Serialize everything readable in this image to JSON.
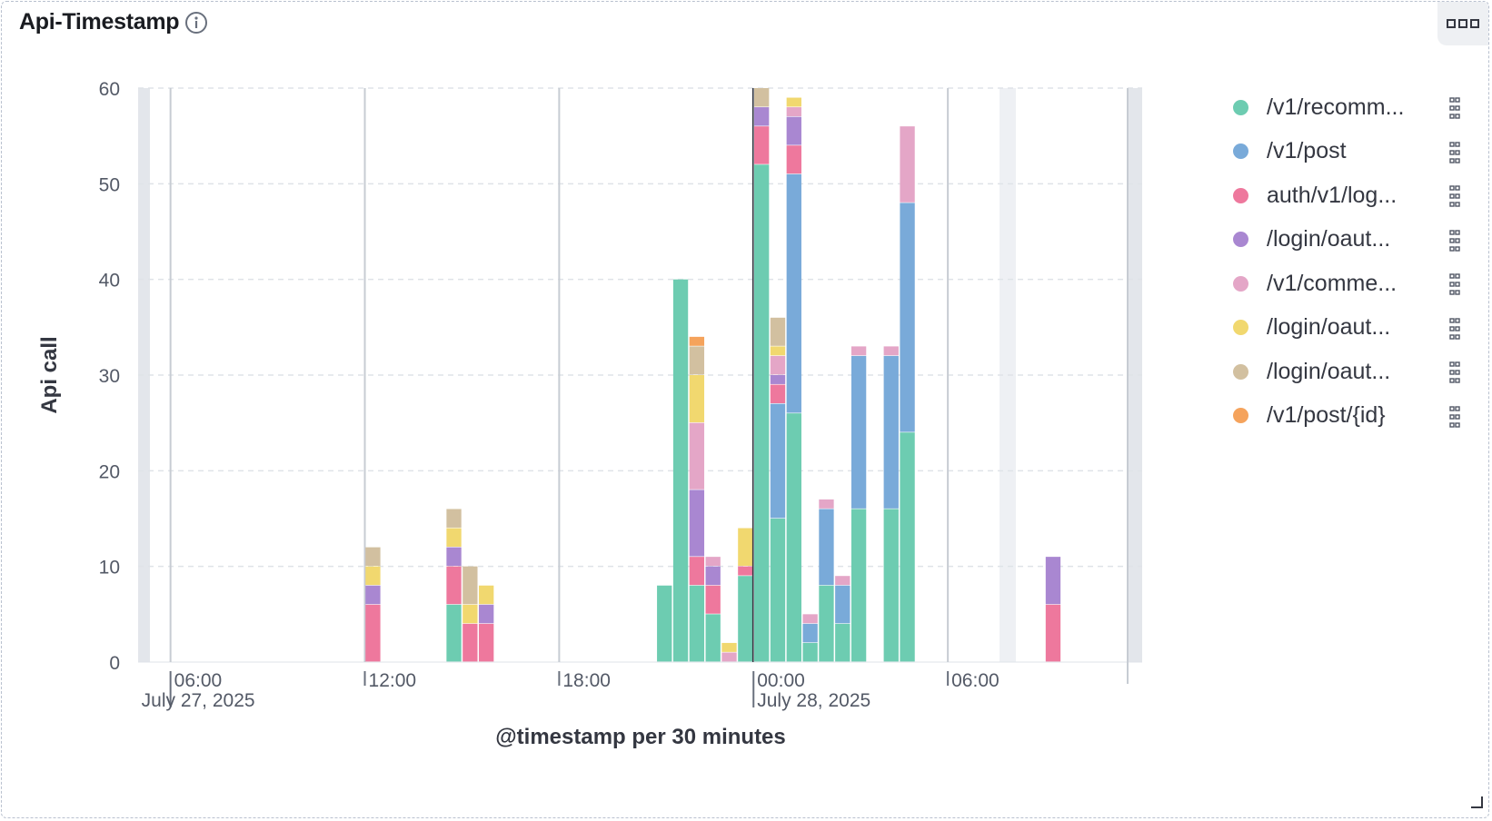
{
  "panel": {
    "title": "Api-Timestamp",
    "info_icon": "info-icon",
    "menu_icon": "ellipsis-icon",
    "resize_icon": "resize-corner-icon"
  },
  "chart_data": {
    "type": "bar",
    "stacked": true,
    "xlabel": "@timestamp per 30 minutes",
    "ylabel": "Api call",
    "ylim": [
      0,
      60
    ],
    "yticks": [
      0,
      10,
      20,
      30,
      40,
      50,
      60
    ],
    "xlim": [
      "2025-07-27 05:00",
      "2025-07-28 12:00"
    ],
    "xticks": [
      {
        "t": "2025-07-27 06:00",
        "label": "06:00",
        "sublabel": "July 27, 2025"
      },
      {
        "t": "2025-07-27 12:00",
        "label": "12:00",
        "sublabel": ""
      },
      {
        "t": "2025-07-27 18:00",
        "label": "18:00",
        "sublabel": ""
      },
      {
        "t": "2025-07-28 00:00",
        "label": "00:00",
        "sublabel": "July 28, 2025"
      },
      {
        "t": "2025-07-28 06:00",
        "label": "06:00",
        "sublabel": ""
      }
    ],
    "grid": true,
    "legend_position": "right",
    "x": [
      "2025-07-27 12:00",
      "2025-07-27 14:30",
      "2025-07-27 15:00",
      "2025-07-27 15:30",
      "2025-07-27 21:00",
      "2025-07-27 21:30",
      "2025-07-27 22:00",
      "2025-07-27 22:30",
      "2025-07-27 23:00",
      "2025-07-27 23:30",
      "2025-07-28 00:00",
      "2025-07-28 00:30",
      "2025-07-28 01:00",
      "2025-07-28 01:30",
      "2025-07-28 02:00",
      "2025-07-28 02:30",
      "2025-07-28 03:00",
      "2025-07-28 04:00",
      "2025-07-28 04:30",
      "2025-07-28 09:00"
    ],
    "series": [
      {
        "name": "/v1/recomm...",
        "color": "#6dccb1",
        "values": [
          0,
          6,
          0,
          0,
          8,
          40,
          8,
          5,
          0,
          9,
          52,
          15,
          26,
          2,
          8,
          4,
          16,
          16,
          24,
          0
        ]
      },
      {
        "name": "/v1/post",
        "color": "#79aad9",
        "values": [
          0,
          0,
          0,
          0,
          0,
          0,
          0,
          0,
          0,
          0,
          0,
          12,
          25,
          2,
          8,
          4,
          16,
          16,
          24,
          0
        ]
      },
      {
        "name": "auth/v1/log...",
        "color": "#ee789d",
        "values": [
          6,
          4,
          4,
          4,
          0,
          0,
          3,
          3,
          0,
          1,
          4,
          2,
          3,
          0,
          0,
          0,
          0,
          0,
          0,
          6
        ]
      },
      {
        "name": "/login/oaut...",
        "color": "#a987d1",
        "values": [
          2,
          2,
          0,
          2,
          0,
          0,
          7,
          2,
          0,
          0,
          2,
          1,
          3,
          0,
          0,
          0,
          0,
          0,
          0,
          5
        ]
      },
      {
        "name": "/v1/comme...",
        "color": "#e4a6c7",
        "values": [
          0,
          0,
          0,
          0,
          0,
          0,
          7,
          1,
          1,
          0,
          0,
          2,
          1,
          1,
          1,
          1,
          1,
          1,
          8,
          0
        ]
      },
      {
        "name": "/login/oaut...",
        "color": "#f1d86f",
        "values": [
          2,
          2,
          2,
          2,
          0,
          0,
          5,
          0,
          1,
          4,
          0,
          1,
          1,
          0,
          0,
          0,
          0,
          0,
          0,
          0
        ]
      },
      {
        "name": "/login/oaut...",
        "color": "#d2c0a0",
        "values": [
          2,
          2,
          4,
          0,
          0,
          0,
          3,
          0,
          0,
          0,
          2,
          3,
          0,
          0,
          0,
          0,
          0,
          0,
          0,
          0
        ]
      },
      {
        "name": "/v1/post/{id}",
        "color": "#f5a35c",
        "values": [
          0,
          0,
          0,
          0,
          0,
          0,
          1,
          0,
          0,
          0,
          0,
          0,
          0,
          0,
          0,
          0,
          0,
          0,
          0,
          0
        ]
      }
    ]
  },
  "legend": {
    "action_icon": "legend-action-icon"
  }
}
